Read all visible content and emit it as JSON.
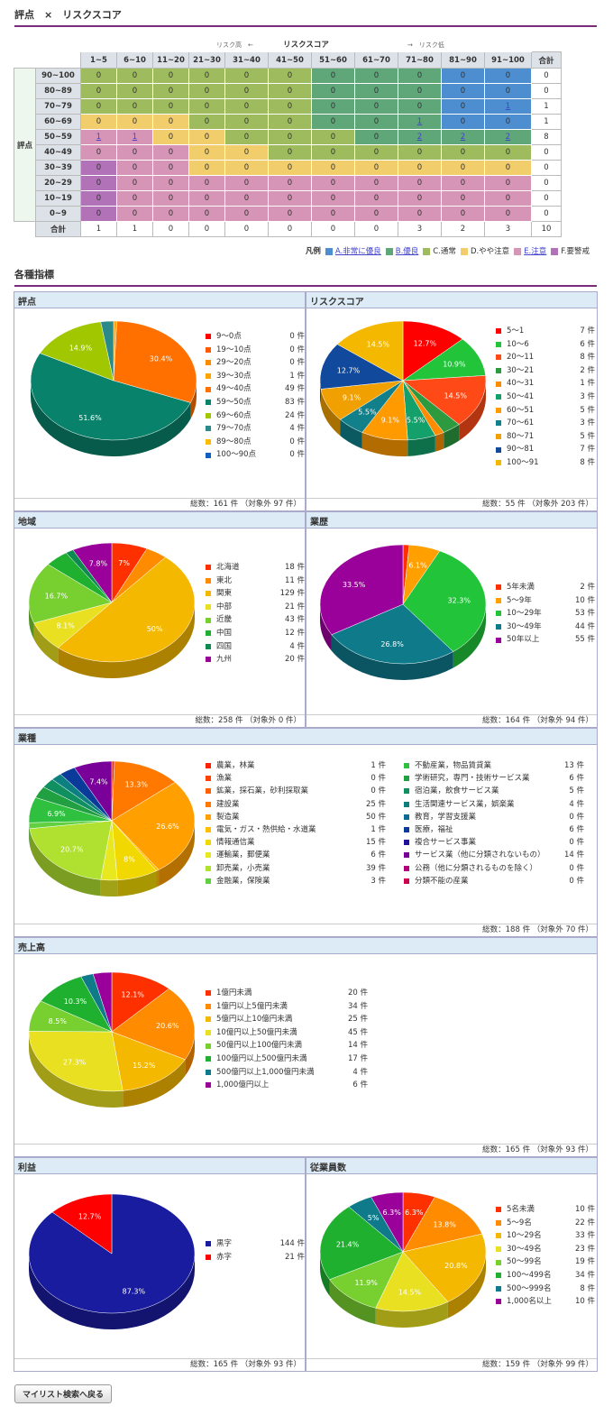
{
  "header": {
    "title": "評点　×　リスクスコア",
    "section2": "各種指標",
    "back": "マイリスト検索へ戻る"
  },
  "matrix": {
    "top_title": "リスクスコア",
    "top_left": "リスク高　←",
    "top_right": "→　リスク低",
    "side_title": "評点",
    "total_label": "合計",
    "cols": [
      "1~5",
      "6~10",
      "11~20",
      "21~30",
      "31~40",
      "41~50",
      "51~60",
      "61~70",
      "71~80",
      "81~90",
      "91~100"
    ],
    "rows": [
      {
        "label": "90~100",
        "cells": [
          "0",
          "0",
          "0",
          "0",
          "0",
          "0",
          "0",
          "0",
          "0",
          "0",
          "0"
        ],
        "colors": [
          "c",
          "c",
          "c",
          "c",
          "c",
          "c",
          "b",
          "b",
          "b",
          "a",
          "a"
        ],
        "total": "0"
      },
      {
        "label": "80~89",
        "cells": [
          "0",
          "0",
          "0",
          "0",
          "0",
          "0",
          "0",
          "0",
          "0",
          "0",
          "0"
        ],
        "colors": [
          "c",
          "c",
          "c",
          "c",
          "c",
          "c",
          "b",
          "b",
          "b",
          "a",
          "a"
        ],
        "total": "0"
      },
      {
        "label": "70~79",
        "cells": [
          "0",
          "0",
          "0",
          "0",
          "0",
          "0",
          "0",
          "0",
          "0",
          "0",
          "1"
        ],
        "colors": [
          "c",
          "c",
          "c",
          "c",
          "c",
          "c",
          "b",
          "b",
          "b",
          "a",
          "a"
        ],
        "total": "1"
      },
      {
        "label": "60~69",
        "cells": [
          "0",
          "0",
          "0",
          "0",
          "0",
          "0",
          "0",
          "0",
          "1",
          "0",
          "0"
        ],
        "colors": [
          "d",
          "d",
          "d",
          "c",
          "c",
          "c",
          "b",
          "b",
          "b",
          "a",
          "a"
        ],
        "total": "1"
      },
      {
        "label": "50~59",
        "cells": [
          "1",
          "1",
          "0",
          "0",
          "0",
          "0",
          "0",
          "0",
          "2",
          "2",
          "2"
        ],
        "colors": [
          "e",
          "e",
          "d",
          "d",
          "c",
          "c",
          "c",
          "b",
          "b",
          "b",
          "b"
        ],
        "total": "8"
      },
      {
        "label": "40~49",
        "cells": [
          "0",
          "0",
          "0",
          "0",
          "0",
          "0",
          "0",
          "0",
          "0",
          "0",
          "0"
        ],
        "colors": [
          "e",
          "e",
          "e",
          "d",
          "d",
          "c",
          "c",
          "c",
          "c",
          "c",
          "c"
        ],
        "total": "0"
      },
      {
        "label": "30~39",
        "cells": [
          "0",
          "0",
          "0",
          "0",
          "0",
          "0",
          "0",
          "0",
          "0",
          "0",
          "0"
        ],
        "colors": [
          "f",
          "e",
          "e",
          "d",
          "d",
          "d",
          "d",
          "d",
          "d",
          "d",
          "d"
        ],
        "total": "0"
      },
      {
        "label": "20~29",
        "cells": [
          "0",
          "0",
          "0",
          "0",
          "0",
          "0",
          "0",
          "0",
          "0",
          "0",
          "0"
        ],
        "colors": [
          "f",
          "e",
          "e",
          "e",
          "e",
          "e",
          "e",
          "e",
          "e",
          "e",
          "e"
        ],
        "total": "0"
      },
      {
        "label": "10~19",
        "cells": [
          "0",
          "0",
          "0",
          "0",
          "0",
          "0",
          "0",
          "0",
          "0",
          "0",
          "0"
        ],
        "colors": [
          "f",
          "e",
          "e",
          "e",
          "e",
          "e",
          "e",
          "e",
          "e",
          "e",
          "e"
        ],
        "total": "0"
      },
      {
        "label": "0~9",
        "cells": [
          "0",
          "0",
          "0",
          "0",
          "0",
          "0",
          "0",
          "0",
          "0",
          "0",
          "0"
        ],
        "colors": [
          "f",
          "e",
          "e",
          "e",
          "e",
          "e",
          "e",
          "e",
          "e",
          "e",
          "e"
        ],
        "total": "0"
      }
    ],
    "col_totals": [
      "1",
      "1",
      "0",
      "0",
      "0",
      "0",
      "0",
      "0",
      "3",
      "2",
      "3"
    ],
    "grand_total": "10"
  },
  "legend": {
    "label": "凡例",
    "items": [
      {
        "t": "A.非常に優良",
        "c": "#4d8ed0",
        "link": true
      },
      {
        "t": "B.優良",
        "c": "#5fa779",
        "link": true
      },
      {
        "t": "C.通常",
        "c": "#9ebc5d"
      },
      {
        "t": "D.やや注意",
        "c": "#f1cd6b"
      },
      {
        "t": "E.注意",
        "c": "#d695b6",
        "link": true
      },
      {
        "t": "F.要警戒",
        "c": "#b172b8"
      }
    ]
  },
  "chart_data": [
    {
      "id": "score",
      "type": "pie",
      "title": "評点",
      "footer": "総数：161 件 （対象外 97 件）",
      "categories": [
        "9～0点",
        "19～10点",
        "29～20点",
        "39～30点",
        "49～40点",
        "59～50点",
        "69～60点",
        "79～70点",
        "89～80点",
        "100～90点"
      ],
      "values": [
        0,
        0,
        0,
        1,
        49,
        83,
        24,
        4,
        0,
        0
      ],
      "unit": "件",
      "colors": [
        "#ff0000",
        "#ff5a00",
        "#ff8c00",
        "#ffa500",
        "#ff7000",
        "#08826a",
        "#a0c700",
        "#2a8a8a",
        "#ffbb00",
        "#1060c0"
      ]
    },
    {
      "id": "risk",
      "type": "pie",
      "title": "リスクスコア",
      "footer": "総数：55 件 （対象外 203 件）",
      "categories": [
        "5～1",
        "10～6",
        "20～11",
        "30～21",
        "40～31",
        "50～41",
        "60～51",
        "70～61",
        "80～71",
        "90～81",
        "100～91"
      ],
      "values": [
        7,
        6,
        8,
        2,
        1,
        3,
        5,
        3,
        5,
        7,
        8
      ],
      "unit": "件",
      "colors": [
        "#ff0000",
        "#22c43a",
        "#ff4a18",
        "#2d9a3f",
        "#ff8c00",
        "#14a06a",
        "#ff9a00",
        "#11808a",
        "#f0a000",
        "#114a9c",
        "#f5b800"
      ]
    },
    {
      "id": "region",
      "type": "pie",
      "title": "地域",
      "footer": "総数：258 件 （対象外 0 件）",
      "categories": [
        "北海道",
        "東北",
        "関東",
        "中部",
        "近畿",
        "中国",
        "四国",
        "九州"
      ],
      "values": [
        18,
        11,
        129,
        21,
        43,
        12,
        4,
        20
      ],
      "unit": "件",
      "colors": [
        "#ff3000",
        "#ff8c00",
        "#f5b800",
        "#e8e020",
        "#78d030",
        "#20b030",
        "#0c8a50",
        "#9a009a"
      ]
    },
    {
      "id": "years",
      "type": "pie",
      "title": "業歴",
      "footer": "総数：164 件 （対象外 94 件）",
      "categories": [
        "5年未満",
        "5～9年",
        "10～29年",
        "30～49年",
        "50年以上"
      ],
      "values": [
        2,
        10,
        53,
        44,
        55
      ],
      "unit": "件",
      "colors": [
        "#ff3000",
        "#ffa000",
        "#22c43a",
        "#0e7a8a",
        "#9a009a"
      ]
    },
    {
      "id": "industry",
      "type": "pie",
      "title": "業種",
      "footer": "総数：188 件 （対象外 70 件）",
      "categories": [
        "農業，林業",
        "漁業",
        "鉱業，採石業，砂利採取業",
        "建設業",
        "製造業",
        "電気・ガス・熱供給・水道業",
        "情報通信業",
        "運輸業，郵便業",
        "卸売業，小売業",
        "金融業，保険業",
        "不動産業，物品賃貸業",
        "学術研究，専門・技術サービス業",
        "宿泊業，飲食サービス業",
        "生活関連サービス業，娯楽業",
        "教育，学習支援業",
        "医療，福祉",
        "複合サービス事業",
        "サービス業（他に分類されないもの）",
        "公務（他に分類されるものを除く）",
        "分類不能の産業"
      ],
      "values": [
        1,
        0,
        0,
        25,
        50,
        1,
        15,
        6,
        39,
        3,
        13,
        6,
        5,
        4,
        0,
        6,
        0,
        14,
        0,
        0
      ],
      "unit": "件",
      "colors": [
        "#ff2000",
        "#ff4000",
        "#ff6000",
        "#ff7800",
        "#ffa000",
        "#ffc000",
        "#f0d800",
        "#e8e820",
        "#b0e030",
        "#60d040",
        "#30c040",
        "#20a040",
        "#109060",
        "#0c8080",
        "#0a6a9a",
        "#0a3a9a",
        "#20109a",
        "#7a009a",
        "#b0007a",
        "#d00050"
      ]
    },
    {
      "id": "sales",
      "type": "pie",
      "title": "売上高",
      "footer": "総数：165 件 （対象外 93 件）",
      "categories": [
        "1億円未満",
        "1億円以上5億円未満",
        "5億円以上10億円未満",
        "10億円以上50億円未満",
        "50億円以上100億円未満",
        "100億円以上500億円未満",
        "500億円以上1,000億円未満",
        "1,000億円以上"
      ],
      "values": [
        20,
        34,
        25,
        45,
        14,
        17,
        4,
        6
      ],
      "unit": "件",
      "colors": [
        "#ff3000",
        "#ff8c00",
        "#f5b800",
        "#e8e020",
        "#78d030",
        "#20b030",
        "#0e7a8a",
        "#9a009a"
      ]
    },
    {
      "id": "profit",
      "type": "pie",
      "title": "利益",
      "footer": "総数：165 件 （対象外 93 件）",
      "categories": [
        "黒字",
        "赤字"
      ],
      "values": [
        144,
        21
      ],
      "unit": "件",
      "colors": [
        "#1a1ca0",
        "#ff0000"
      ]
    },
    {
      "id": "employees",
      "type": "pie",
      "title": "従業員数",
      "footer": "総数：159 件 （対象外 99 件）",
      "categories": [
        "5名未満",
        "5～9名",
        "10～29名",
        "30～49名",
        "50～99名",
        "100～499名",
        "500～999名",
        "1,000名以上"
      ],
      "values": [
        10,
        22,
        33,
        23,
        19,
        34,
        8,
        10
      ],
      "unit": "件",
      "colors": [
        "#ff3000",
        "#ff8c00",
        "#f5b800",
        "#e8e020",
        "#78d030",
        "#20b030",
        "#0e7a8a",
        "#9a009a"
      ]
    }
  ]
}
